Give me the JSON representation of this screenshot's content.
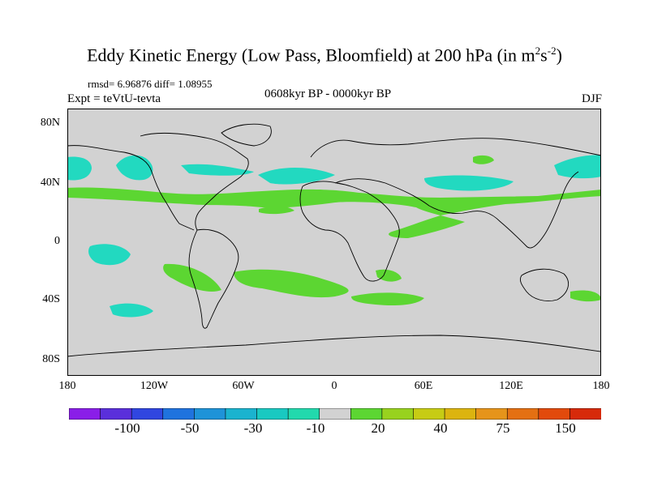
{
  "title": {
    "main": "Eddy Kinetic Energy (Low Pass, Bloomfield) at 200 hPa (in m",
    "sup1": "2",
    "mid": "s",
    "sup2": "-2",
    "end": ")"
  },
  "stats": "rmsd= 6.96876 diff= 1.08955",
  "expt": "Expt = teVtU-tevta",
  "period": "0608kyr BP - 0000kyr BP",
  "season": "DJF",
  "y_ticks": [
    "80N",
    "40N",
    "0",
    "40S",
    "80S"
  ],
  "x_ticks": [
    "180",
    "120W",
    "60W",
    "0",
    "60E",
    "120E",
    "180"
  ],
  "colorbar": {
    "labels": [
      "-100",
      "-50",
      "-30",
      "-10",
      "20",
      "40",
      "75",
      "150"
    ],
    "colors": [
      "#8a1ee8",
      "#5a2fdb",
      "#3046e0",
      "#1f73de",
      "#1e93d8",
      "#1ab3cf",
      "#19c9c1",
      "#22d9ad",
      "#d2d2d2",
      "#5cd632",
      "#98d21e",
      "#c7cc14",
      "#dcb40f",
      "#e6941a",
      "#e47012",
      "#e24a0c",
      "#d72a0a"
    ]
  },
  "colors": {
    "land_bg": "#d2d2d2",
    "positive": "#5cd632",
    "negative": "#22d9c0"
  }
}
